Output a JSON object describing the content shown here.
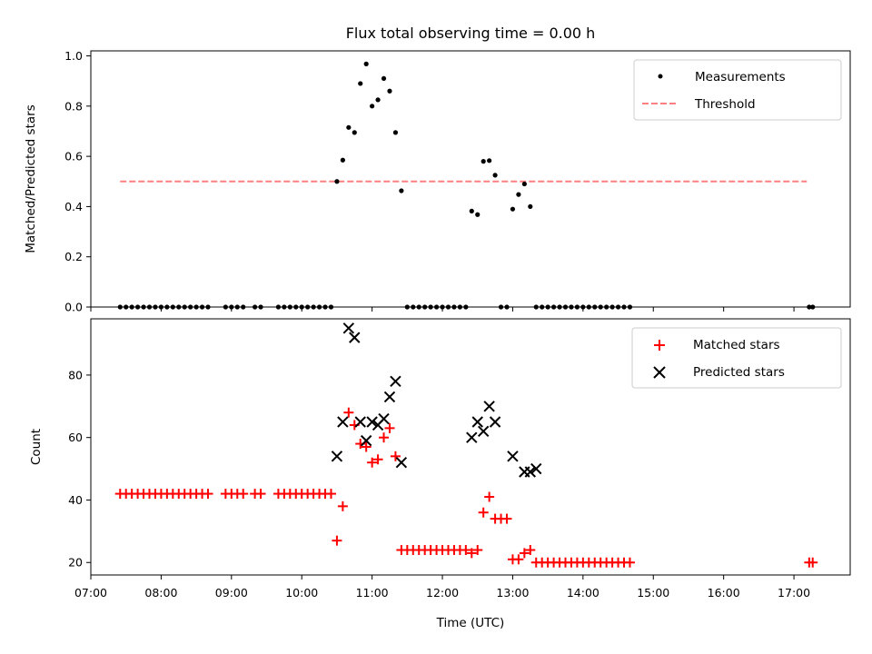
{
  "chart_data": [
    {
      "type": "scatter",
      "title": "Flux total observing time = 0.00 h",
      "xlabel": "",
      "ylabel": "Matched/Predicted stars",
      "ylim": [
        0,
        1.02
      ],
      "xlim": [
        "07:00",
        "17:48"
      ],
      "y_ticks": [
        "0.0",
        "0.2",
        "0.4",
        "0.6",
        "0.8",
        "1.0"
      ],
      "legend_position": "top-right",
      "legend": [
        "Measurements",
        "Threshold"
      ],
      "series": [
        {
          "name": "Measurements",
          "marker": "dot",
          "color": "#000000",
          "points": [
            [
              "07:25",
              0
            ],
            [
              "07:30",
              0
            ],
            [
              "07:35",
              0
            ],
            [
              "07:40",
              0
            ],
            [
              "07:45",
              0
            ],
            [
              "07:50",
              0
            ],
            [
              "07:55",
              0
            ],
            [
              "08:00",
              0
            ],
            [
              "08:05",
              0
            ],
            [
              "08:10",
              0
            ],
            [
              "08:15",
              0
            ],
            [
              "08:20",
              0
            ],
            [
              "08:25",
              0
            ],
            [
              "08:30",
              0
            ],
            [
              "08:35",
              0
            ],
            [
              "08:40",
              0
            ],
            [
              "08:55",
              0
            ],
            [
              "09:00",
              0
            ],
            [
              "09:05",
              0
            ],
            [
              "09:10",
              0
            ],
            [
              "09:20",
              0
            ],
            [
              "09:25",
              0
            ],
            [
              "09:40",
              0
            ],
            [
              "09:45",
              0
            ],
            [
              "09:50",
              0
            ],
            [
              "09:55",
              0
            ],
            [
              "10:00",
              0
            ],
            [
              "10:05",
              0
            ],
            [
              "10:10",
              0
            ],
            [
              "10:15",
              0
            ],
            [
              "10:20",
              0
            ],
            [
              "10:25",
              0
            ],
            [
              "10:30",
              0.5
            ],
            [
              "10:35",
              0.585
            ],
            [
              "10:40",
              0.715
            ],
            [
              "10:45",
              0.695
            ],
            [
              "10:50",
              0.89
            ],
            [
              "10:55",
              0.968
            ],
            [
              "11:00",
              0.8
            ],
            [
              "11:05",
              0.825
            ],
            [
              "11:10",
              0.91
            ],
            [
              "11:15",
              0.86
            ],
            [
              "11:20",
              0.695
            ],
            [
              "11:25",
              0.463
            ],
            [
              "11:30",
              0
            ],
            [
              "11:35",
              0
            ],
            [
              "11:40",
              0
            ],
            [
              "11:45",
              0
            ],
            [
              "11:50",
              0
            ],
            [
              "11:55",
              0
            ],
            [
              "12:00",
              0
            ],
            [
              "12:05",
              0
            ],
            [
              "12:10",
              0
            ],
            [
              "12:15",
              0
            ],
            [
              "12:20",
              0
            ],
            [
              "12:25",
              0.382
            ],
            [
              "12:30",
              0.368
            ],
            [
              "12:35",
              0.58
            ],
            [
              "12:40",
              0.583
            ],
            [
              "12:45",
              0.525
            ],
            [
              "12:50",
              0
            ],
            [
              "12:55",
              0
            ],
            [
              "13:00",
              0.39
            ],
            [
              "13:05",
              0.448
            ],
            [
              "13:10",
              0.49
            ],
            [
              "13:15",
              0.4
            ],
            [
              "13:20",
              0
            ],
            [
              "13:25",
              0
            ],
            [
              "13:30",
              0
            ],
            [
              "13:35",
              0
            ],
            [
              "13:40",
              0
            ],
            [
              "13:45",
              0
            ],
            [
              "13:50",
              0
            ],
            [
              "13:55",
              0
            ],
            [
              "14:00",
              0
            ],
            [
              "14:05",
              0
            ],
            [
              "14:10",
              0
            ],
            [
              "14:15",
              0
            ],
            [
              "14:20",
              0
            ],
            [
              "14:25",
              0
            ],
            [
              "14:30",
              0
            ],
            [
              "14:35",
              0
            ],
            [
              "14:40",
              0
            ],
            [
              "17:13",
              0
            ],
            [
              "17:16",
              0
            ]
          ]
        },
        {
          "name": "Threshold",
          "line": "dashed",
          "color": "#ff8080",
          "points": [
            [
              "07:25",
              0.5
            ],
            [
              "17:11",
              0.5
            ]
          ]
        }
      ]
    },
    {
      "type": "scatter",
      "title": "",
      "xlabel": "Time (UTC)",
      "ylabel": "Count",
      "ylim": [
        16,
        98
      ],
      "xlim": [
        "07:00",
        "17:48"
      ],
      "y_ticks": [
        "20",
        "40",
        "60",
        "80"
      ],
      "x_ticks": [
        "07:00",
        "08:00",
        "09:00",
        "10:00",
        "11:00",
        "12:00",
        "13:00",
        "14:00",
        "15:00",
        "16:00",
        "17:00"
      ],
      "legend_position": "top-right",
      "legend": [
        "Matched stars",
        "Predicted stars"
      ],
      "series": [
        {
          "name": "Matched stars",
          "marker": "plus",
          "color": "#ff0000",
          "points": [
            [
              "07:25",
              42
            ],
            [
              "07:30",
              42
            ],
            [
              "07:35",
              42
            ],
            [
              "07:40",
              42
            ],
            [
              "07:45",
              42
            ],
            [
              "07:50",
              42
            ],
            [
              "07:55",
              42
            ],
            [
              "08:00",
              42
            ],
            [
              "08:05",
              42
            ],
            [
              "08:10",
              42
            ],
            [
              "08:15",
              42
            ],
            [
              "08:20",
              42
            ],
            [
              "08:25",
              42
            ],
            [
              "08:30",
              42
            ],
            [
              "08:35",
              42
            ],
            [
              "08:40",
              42
            ],
            [
              "08:55",
              42
            ],
            [
              "09:00",
              42
            ],
            [
              "09:05",
              42
            ],
            [
              "09:10",
              42
            ],
            [
              "09:20",
              42
            ],
            [
              "09:25",
              42
            ],
            [
              "09:40",
              42
            ],
            [
              "09:45",
              42
            ],
            [
              "09:50",
              42
            ],
            [
              "09:55",
              42
            ],
            [
              "10:00",
              42
            ],
            [
              "10:05",
              42
            ],
            [
              "10:10",
              42
            ],
            [
              "10:15",
              42
            ],
            [
              "10:20",
              42
            ],
            [
              "10:25",
              42
            ],
            [
              "10:30",
              27
            ],
            [
              "10:35",
              38
            ],
            [
              "10:40",
              68
            ],
            [
              "10:45",
              64
            ],
            [
              "10:50",
              58
            ],
            [
              "10:55",
              57
            ],
            [
              "11:00",
              52
            ],
            [
              "11:05",
              53
            ],
            [
              "11:10",
              60
            ],
            [
              "11:15",
              63
            ],
            [
              "11:20",
              54
            ],
            [
              "11:25",
              24
            ],
            [
              "11:30",
              24
            ],
            [
              "11:35",
              24
            ],
            [
              "11:40",
              24
            ],
            [
              "11:45",
              24
            ],
            [
              "11:50",
              24
            ],
            [
              "11:55",
              24
            ],
            [
              "12:00",
              24
            ],
            [
              "12:05",
              24
            ],
            [
              "12:10",
              24
            ],
            [
              "12:15",
              24
            ],
            [
              "12:20",
              24
            ],
            [
              "12:25",
              23
            ],
            [
              "12:30",
              24
            ],
            [
              "12:35",
              36
            ],
            [
              "12:40",
              41
            ],
            [
              "12:45",
              34
            ],
            [
              "12:50",
              34
            ],
            [
              "12:55",
              34
            ],
            [
              "13:00",
              21
            ],
            [
              "13:05",
              21
            ],
            [
              "13:10",
              23
            ],
            [
              "13:15",
              24
            ],
            [
              "13:20",
              20
            ],
            [
              "13:25",
              20
            ],
            [
              "13:30",
              20
            ],
            [
              "13:35",
              20
            ],
            [
              "13:40",
              20
            ],
            [
              "13:45",
              20
            ],
            [
              "13:50",
              20
            ],
            [
              "13:55",
              20
            ],
            [
              "14:00",
              20
            ],
            [
              "14:05",
              20
            ],
            [
              "14:10",
              20
            ],
            [
              "14:15",
              20
            ],
            [
              "14:20",
              20
            ],
            [
              "14:25",
              20
            ],
            [
              "14:30",
              20
            ],
            [
              "14:35",
              20
            ],
            [
              "14:40",
              20
            ],
            [
              "17:13",
              20
            ],
            [
              "17:16",
              20
            ]
          ]
        },
        {
          "name": "Predicted stars",
          "marker": "x",
          "color": "#000000",
          "points": [
            [
              "10:30",
              54
            ],
            [
              "10:35",
              65
            ],
            [
              "10:40",
              95
            ],
            [
              "10:45",
              92
            ],
            [
              "10:50",
              65
            ],
            [
              "10:55",
              59
            ],
            [
              "11:00",
              65
            ],
            [
              "11:05",
              64
            ],
            [
              "11:10",
              66
            ],
            [
              "11:15",
              73
            ],
            [
              "11:20",
              78
            ],
            [
              "11:25",
              52
            ],
            [
              "12:25",
              60
            ],
            [
              "12:30",
              65
            ],
            [
              "12:35",
              62
            ],
            [
              "12:40",
              70
            ],
            [
              "12:45",
              65
            ],
            [
              "13:00",
              54
            ],
            [
              "13:10",
              49
            ],
            [
              "13:15",
              49
            ],
            [
              "13:20",
              50
            ]
          ]
        }
      ]
    }
  ]
}
